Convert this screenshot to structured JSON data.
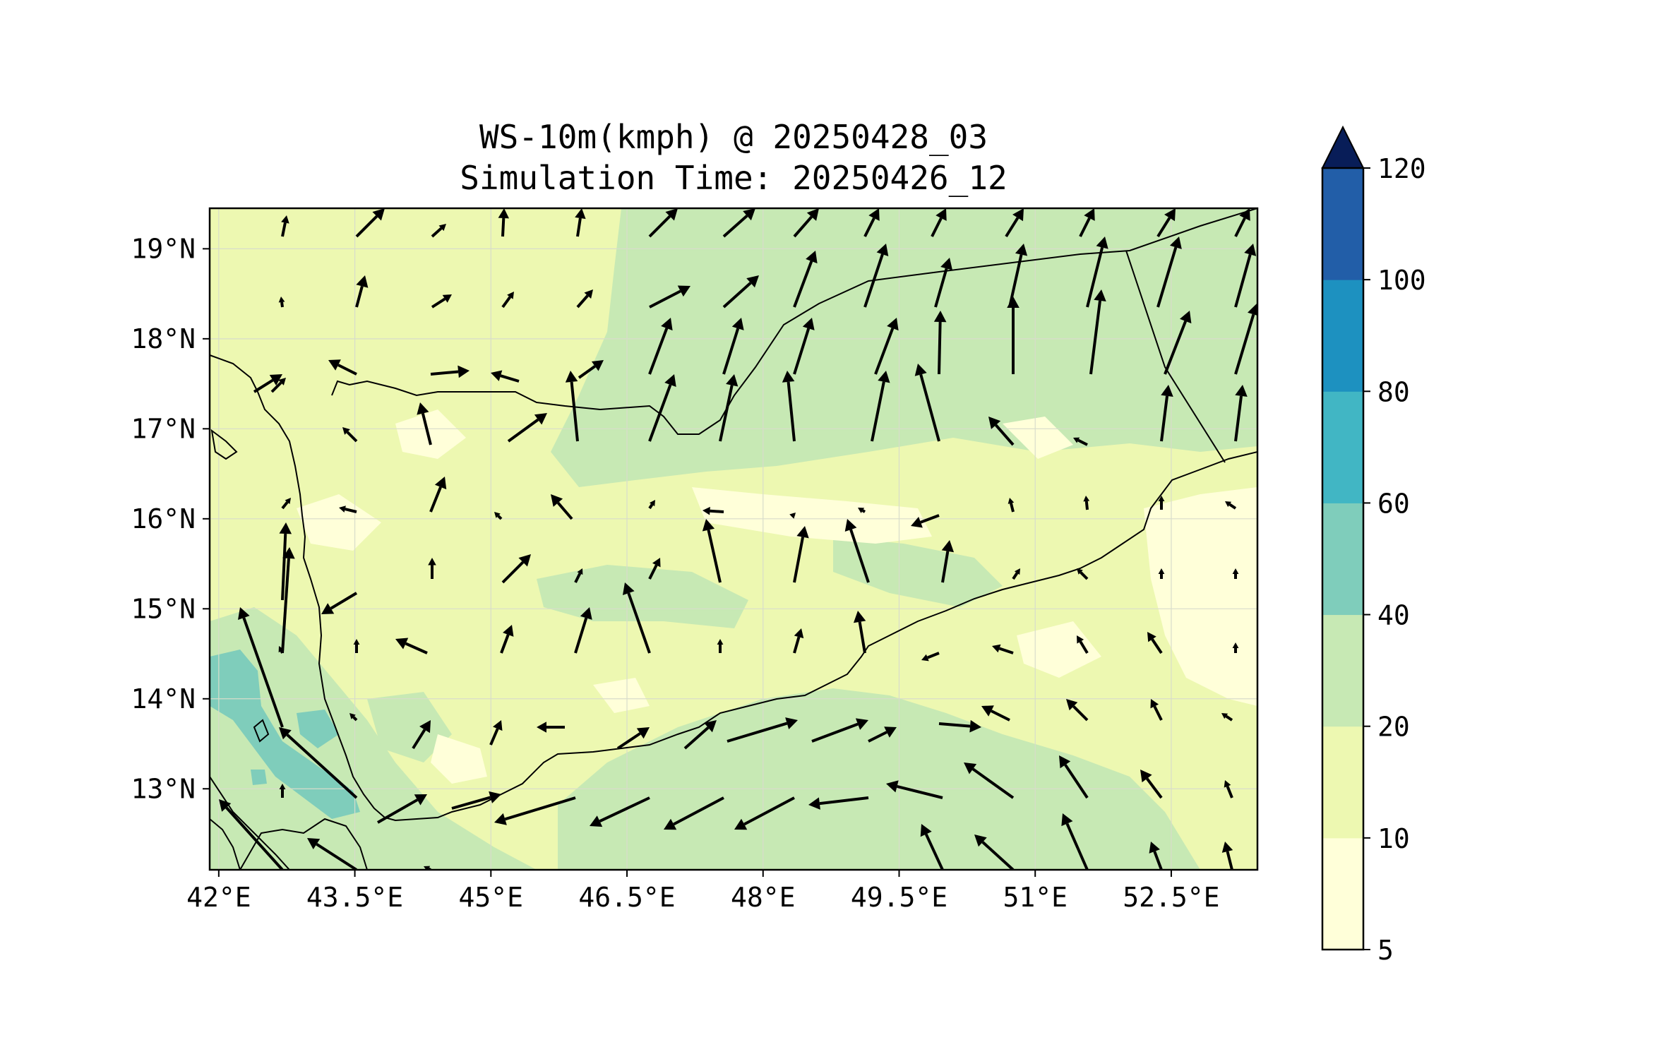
{
  "title": {
    "line1": "WS-10m(kmph) @ 20250428_03",
    "line2": "Simulation Time: 20250426_12"
  },
  "map": {
    "lon_range": [
      41.9,
      53.45
    ],
    "lat_range": [
      12.1,
      19.45
    ],
    "lon_ticks": [
      {
        "value": 42,
        "label": "42°E"
      },
      {
        "value": 43.5,
        "label": "43.5°E"
      },
      {
        "value": 45,
        "label": "45°E"
      },
      {
        "value": 46.5,
        "label": "46.5°E"
      },
      {
        "value": 48,
        "label": "48°E"
      },
      {
        "value": 49.5,
        "label": "49.5°E"
      },
      {
        "value": 51,
        "label": "51°E"
      },
      {
        "value": 52.5,
        "label": "52.5°E"
      }
    ],
    "lat_ticks": [
      {
        "value": 19,
        "label": "19°N"
      },
      {
        "value": 18,
        "label": "18°N"
      },
      {
        "value": 17,
        "label": "17°N"
      },
      {
        "value": 16,
        "label": "16°N"
      },
      {
        "value": 15,
        "label": "15°N"
      },
      {
        "value": 14,
        "label": "14°N"
      },
      {
        "value": 13,
        "label": "13°N"
      }
    ],
    "grid": true
  },
  "colorbar": {
    "levels": [
      5,
      10,
      20,
      40,
      60,
      80,
      100,
      120
    ],
    "tick_labels": [
      "5",
      "10",
      "20",
      "40",
      "60",
      "80",
      "100",
      "120"
    ],
    "colors": [
      "#ffffd9",
      "#edf8b1",
      "#c7e9b4",
      "#7fcdbb",
      "#41b6c4",
      "#1d91c0",
      "#225ea8",
      "#253494"
    ],
    "extend_color": "#081d58",
    "extend": "max"
  },
  "colors": {
    "background_field": "#edf8b1",
    "coastline": "#000000",
    "arrow": "#000000"
  }
}
